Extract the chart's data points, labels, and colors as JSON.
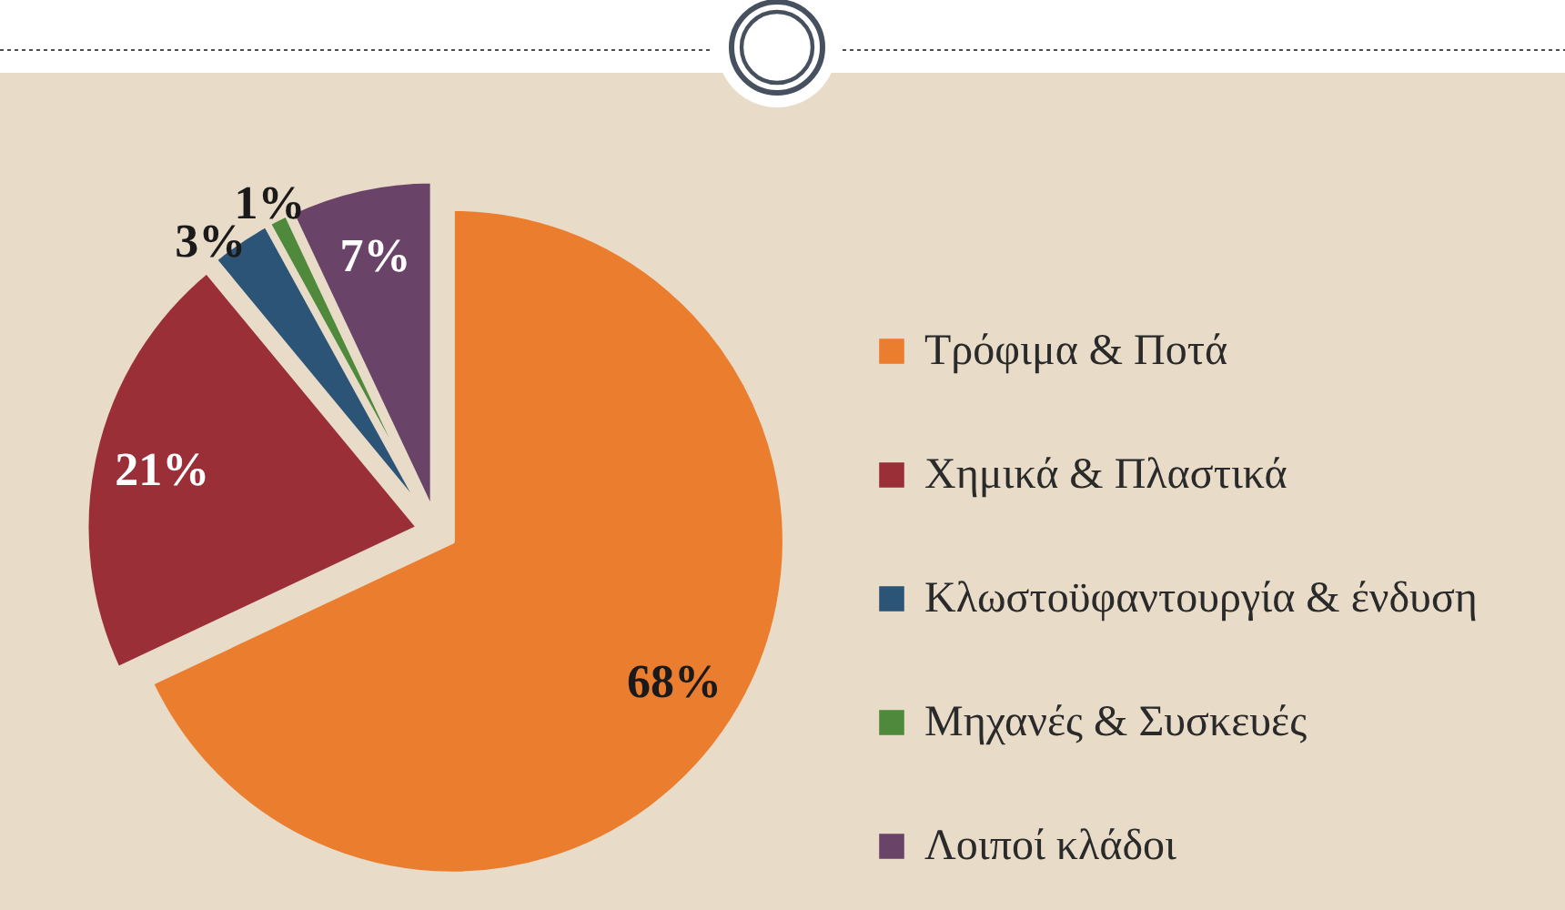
{
  "chart_data": {
    "type": "pie",
    "categories": [
      "Τρόφιμα & Ποτά",
      "Χημικά & Πλαστικά",
      "Κλωστοϋφαντουργία & ένδυση",
      "Μηχανές & Συσκευές",
      "Λοιποί κλάδοι"
    ],
    "values": [
      68,
      21,
      3,
      1,
      7
    ],
    "colors": [
      "#eb7d2e",
      "#9a2f38",
      "#2c5477",
      "#4f8a3c",
      "#6a4468"
    ],
    "value_labels": [
      "68%",
      "21%",
      "3%",
      "1%",
      "7%"
    ],
    "legend": "right"
  }
}
